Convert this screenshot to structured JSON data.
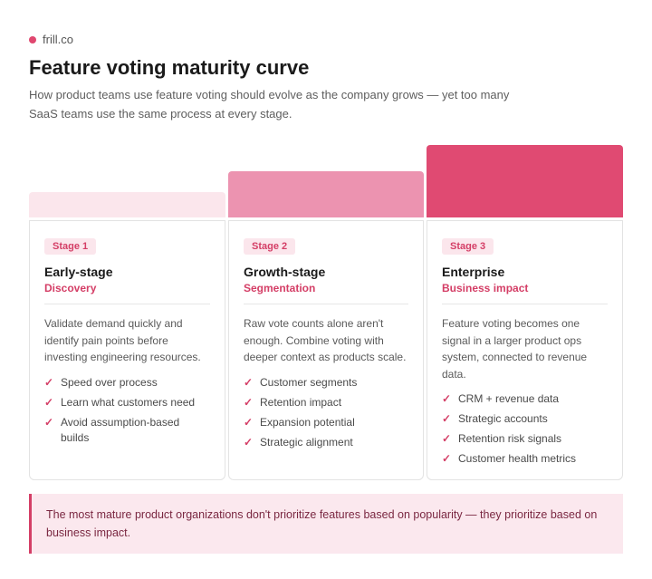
{
  "brand": {
    "name": "frill.co",
    "dot_color": "#e0476f"
  },
  "title": "Feature voting maturity curve",
  "subtitle": "How product teams use feature voting should evolve as the company grows — yet too many SaaS teams use the same process at every stage.",
  "stages": [
    {
      "badge": "Stage 1",
      "name": "Early-stage",
      "focus": "Discovery",
      "bar_color": "#fbe6ec",
      "description": "Validate demand quickly and identify pain points before investing engineering resources.",
      "points": [
        "Speed over process",
        "Learn what customers need",
        "Avoid assumption-based builds"
      ]
    },
    {
      "badge": "Stage 2",
      "name": "Growth-stage",
      "focus": "Segmentation",
      "bar_color": "#ec93b0",
      "description": "Raw vote counts alone aren't enough. Combine voting with deeper context as products scale.",
      "points": [
        "Customer segments",
        "Retention impact",
        "Expansion potential",
        "Strategic alignment"
      ]
    },
    {
      "badge": "Stage 3",
      "name": "Enterprise",
      "focus": "Business impact",
      "bar_color": "#e04a72",
      "description": "Feature voting becomes one signal in a larger product ops system, connected to revenue data.",
      "points": [
        "CRM + revenue data",
        "Strategic accounts",
        "Retention risk signals",
        "Customer health metrics"
      ]
    }
  ],
  "check_glyph": "✓",
  "callout": "The most mature product organizations don't prioritize features based on popularity — they prioritize based on business impact.",
  "accent_color": "#d43e66"
}
